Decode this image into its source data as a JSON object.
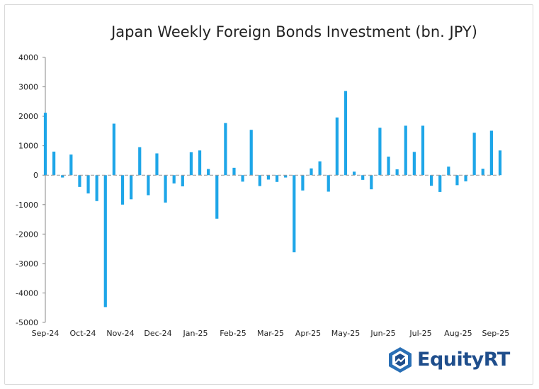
{
  "chart_data": {
    "type": "bar",
    "title": "Japan Weekly Foreign Bonds Investment (bn. JPY)",
    "ylim": [
      -5000,
      4000
    ],
    "yticks": [
      4000,
      3000,
      2000,
      1000,
      0,
      -1000,
      -2000,
      -3000,
      -4000,
      -5000
    ],
    "xtick_labels": [
      "Sep-24",
      "Oct-24",
      "Nov-24",
      "Dec-24",
      "Jan-25",
      "Feb-25",
      "Mar-25",
      "Apr-25",
      "May-25",
      "Jun-25",
      "Jul-25",
      "Aug-25",
      "Sep-25"
    ],
    "grid": false,
    "color": "#1ea6e8",
    "values": [
      2120,
      800,
      -80,
      700,
      -400,
      -620,
      -880,
      -4480,
      1750,
      -1000,
      -820,
      950,
      -680,
      740,
      -930,
      -280,
      -380,
      780,
      840,
      210,
      -1480,
      1770,
      250,
      -220,
      1540,
      -370,
      -150,
      -230,
      -80,
      -2620,
      -520,
      230,
      470,
      -560,
      1960,
      2860,
      120,
      -160,
      -480,
      1610,
      630,
      200,
      1680,
      790,
      1680,
      -360,
      -570,
      290,
      -340,
      -210,
      1440,
      220,
      1510,
      840
    ]
  },
  "branding": {
    "logo_text": "EquityRT",
    "logo_icon": "equityrt-shield-icon"
  }
}
